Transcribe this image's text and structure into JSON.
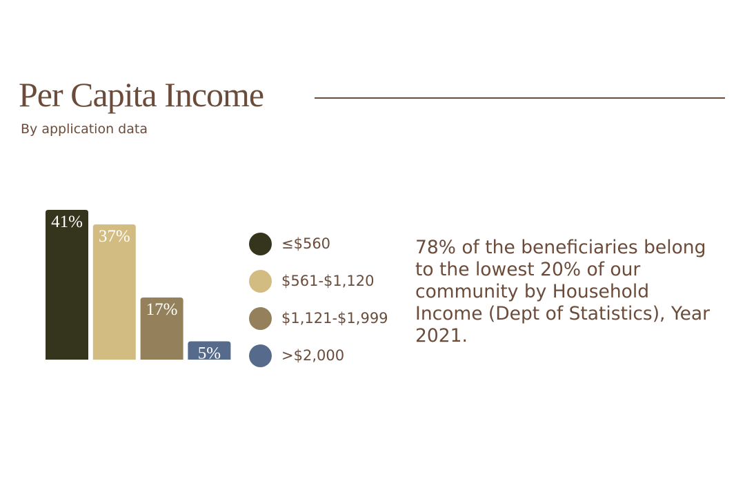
{
  "header": {
    "title": "Per Capita Income",
    "subtitle": "By application data"
  },
  "chart_data": {
    "type": "bar",
    "title": "Per Capita Income",
    "subtitle": "By application data",
    "categories": [
      "≤$560",
      "$561-$1,120",
      "$1,121-$1,999",
      ">$2,000"
    ],
    "values": [
      41,
      37,
      17,
      5
    ],
    "labels": [
      "41%",
      "37%",
      "17%",
      "5%"
    ],
    "colors": [
      "#35351d",
      "#d3bc82",
      "#94805a",
      "#566a8c"
    ],
    "ylim": [
      0,
      41
    ],
    "legend_placement": "right",
    "grid": false
  },
  "legend": [
    {
      "label": "≤$560",
      "color": "#35351d"
    },
    {
      "label": "$561-$1,120",
      "color": "#d3bc82"
    },
    {
      "label": "$1,121-$1,999",
      "color": "#94805a"
    },
    {
      "label": ">$2,000",
      "color": "#566a8c"
    }
  ],
  "note": "78% of the beneficiaries belong to the lowest 20% of our community by Household Income (Dept of Statistics), Year 2021."
}
